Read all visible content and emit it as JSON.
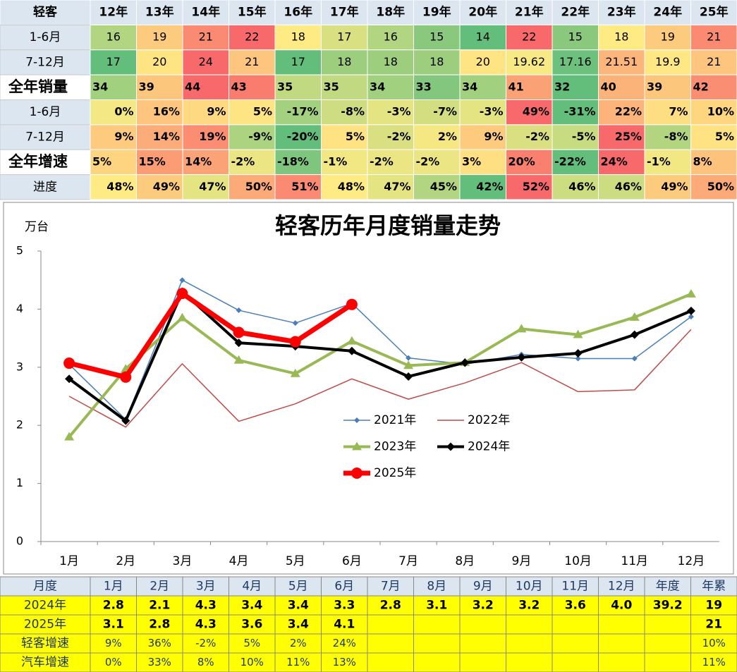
{
  "top_table": {
    "header": [
      "轻客",
      "12年",
      "13年",
      "14年",
      "15年",
      "16年",
      "17年",
      "18年",
      "19年",
      "20年",
      "21年",
      "22年",
      "23年",
      "24年",
      "25年"
    ],
    "rows": [
      {
        "label": "1-6月",
        "bold": false,
        "cells": [
          "16",
          "19",
          "21",
          "22",
          "18",
          "17",
          "16",
          "15",
          "14",
          "22",
          "15",
          "18",
          "19",
          "21"
        ]
      },
      {
        "label": "7-12月",
        "bold": false,
        "cells": [
          "17",
          "20",
          "24",
          "21",
          "17",
          "18",
          "18",
          "18",
          "20",
          "19.62",
          "17.16",
          "21.51",
          "19.9",
          "21"
        ]
      },
      {
        "label": "全年销量",
        "bold": true,
        "cells": [
          "34",
          "39",
          "44",
          "43",
          "35",
          "35",
          "34",
          "33",
          "34",
          "41",
          "32",
          "40",
          "39",
          "42"
        ]
      },
      {
        "label": "1-6月",
        "bold": false,
        "cells": [
          "0%",
          "16%",
          "9%",
          "5%",
          "-17%",
          "-8%",
          "-3%",
          "-7%",
          "-3%",
          "49%",
          "-31%",
          "22%",
          "7%",
          "10%"
        ]
      },
      {
        "label": "7-12月",
        "bold": false,
        "cells": [
          "9%",
          "14%",
          "19%",
          "-9%",
          "-20%",
          "5%",
          "-2%",
          "2%",
          "9%",
          "-2%",
          "-5%",
          "25%",
          "-8%",
          "5%"
        ]
      },
      {
        "label": "全年增速",
        "bold": true,
        "cells": [
          "5%",
          "15%",
          "14%",
          "-2%",
          "-18%",
          "-1%",
          "-2%",
          "-2%",
          "3%",
          "20%",
          "-22%",
          "24%",
          "-1%",
          "8%"
        ]
      },
      {
        "label": "进度",
        "bold": false,
        "cells": [
          "48%",
          "49%",
          "47%",
          "50%",
          "51%",
          "48%",
          "47%",
          "45%",
          "42%",
          "52%",
          "46%",
          "46%",
          "49%",
          "50%"
        ]
      }
    ]
  },
  "chart_data": {
    "type": "line",
    "title": "轻客历年月度销量走势",
    "y_label": "万台",
    "categories": [
      "1月",
      "2月",
      "3月",
      "4月",
      "5月",
      "6月",
      "7月",
      "8月",
      "9月",
      "10月",
      "11月",
      "12月"
    ],
    "ylim": [
      0,
      5
    ],
    "yticks": [
      0,
      1,
      2,
      3,
      4,
      5
    ],
    "grid": false,
    "legend": "center",
    "series": [
      {
        "name": "2021年",
        "color": "#4a7ebb",
        "marker": "diamond",
        "values": [
          3.05,
          2.1,
          4.5,
          3.98,
          3.76,
          4.1,
          3.16,
          3.05,
          3.22,
          3.15,
          3.15,
          3.87
        ]
      },
      {
        "name": "2022年",
        "color": "#be4b48",
        "marker": "none",
        "values": [
          2.5,
          1.97,
          3.06,
          2.07,
          2.37,
          2.8,
          2.45,
          2.73,
          3.08,
          2.58,
          2.61,
          3.65
        ]
      },
      {
        "name": "2023年",
        "color": "#98b954",
        "marker": "triangle",
        "values": [
          1.8,
          2.97,
          3.85,
          3.12,
          2.89,
          3.45,
          3.03,
          3.08,
          3.66,
          3.56,
          3.86,
          4.26
        ]
      },
      {
        "name": "2024年",
        "color": "#000000",
        "marker": "diamond",
        "values": [
          2.8,
          2.08,
          4.3,
          3.42,
          3.36,
          3.28,
          2.84,
          3.08,
          3.17,
          3.24,
          3.56,
          3.97
        ]
      },
      {
        "name": "2025年",
        "color": "#ff0000",
        "marker": "circle",
        "values": [
          3.07,
          2.83,
          4.27,
          3.6,
          3.44,
          4.08,
          null,
          null,
          null,
          null,
          null,
          null
        ]
      }
    ]
  },
  "bottom_table": {
    "header": [
      "月度",
      "1月",
      "2月",
      "3月",
      "4月",
      "5月",
      "6月",
      "7月",
      "8月",
      "9月",
      "10月",
      "11月",
      "12月",
      "年度",
      "年累"
    ],
    "rows": [
      {
        "label": "2024年",
        "bold": true,
        "cells": [
          "2.8",
          "2.1",
          "4.3",
          "3.4",
          "3.4",
          "3.3",
          "2.8",
          "3.1",
          "3.2",
          "3.2",
          "3.6",
          "4.0",
          "39.2",
          "19"
        ]
      },
      {
        "label": "2025年",
        "bold": true,
        "cells": [
          "3.1",
          "2.8",
          "4.3",
          "3.6",
          "3.4",
          "4.1",
          null,
          null,
          null,
          null,
          null,
          null,
          null,
          "21"
        ]
      },
      {
        "label": "轻客增速",
        "bold": false,
        "cells": [
          "9%",
          "36%",
          "-2%",
          "5%",
          "2%",
          "24%",
          null,
          null,
          null,
          null,
          null,
          null,
          null,
          "10%"
        ]
      },
      {
        "label": "汽车增速",
        "bold": false,
        "cells": [
          "0%",
          "33%",
          "8%",
          "10%",
          "11%",
          "13%",
          null,
          null,
          null,
          null,
          null,
          null,
          null,
          "11%"
        ]
      }
    ]
  }
}
